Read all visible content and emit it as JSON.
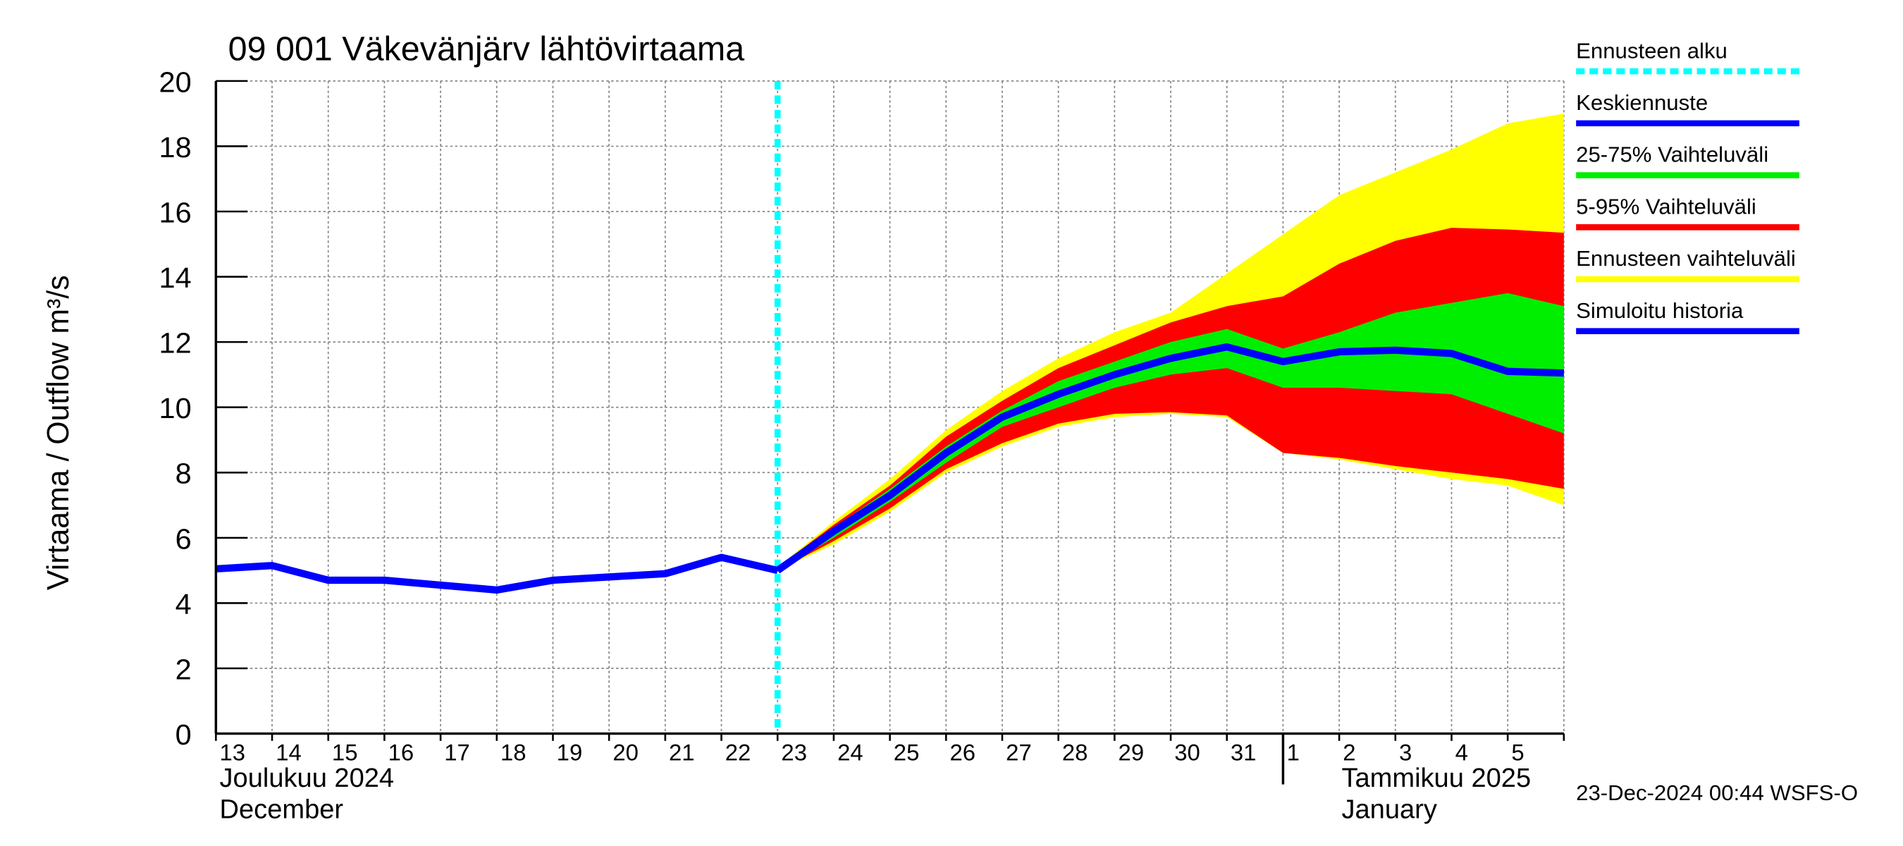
{
  "chart_data": {
    "type": "line",
    "title": "09 001 Väkevänjärv lähtövirtaama",
    "y_label": "Virtaama / Outflow    m³/s",
    "categories": [
      "13",
      "14",
      "15",
      "16",
      "17",
      "18",
      "19",
      "20",
      "21",
      "22",
      "23",
      "24",
      "25",
      "26",
      "27",
      "28",
      "29",
      "30",
      "31",
      "1",
      "2",
      "3",
      "4",
      "5",
      null
    ],
    "month_labels": [
      {
        "index": 0,
        "lines": [
          "Joulukuu  2024",
          "December"
        ]
      },
      {
        "index": 19,
        "lines": [
          "Tammikuu  2025",
          "January"
        ]
      }
    ],
    "footer": "23-Dec-2024 00:44 WSFS-O",
    "forecast_start_label": "Ennusteen alku",
    "forecast_start_color": "#00ffff",
    "ylim": [
      0,
      20
    ],
    "yticks": [
      0,
      2,
      4,
      6,
      8,
      10,
      12,
      14,
      16,
      18,
      20
    ],
    "grid": true,
    "series": [
      {
        "name": "Keskiennuste",
        "color": "#0000ff",
        "values": [
          null,
          null,
          null,
          null,
          null,
          null,
          null,
          null,
          null,
          null,
          5.0,
          6.2,
          7.3,
          8.6,
          9.7,
          10.4,
          11.0,
          11.5,
          11.85,
          11.4,
          11.7,
          11.75,
          11.65,
          11.1,
          11.05
        ]
      },
      {
        "name": "25-75% Vaihteluväli",
        "color": "#00ee00",
        "values": [
          null,
          null,
          null,
          null,
          null,
          null,
          null,
          null,
          null,
          null,
          5.05,
          6.3,
          7.5,
          8.8,
          9.9,
          10.8,
          11.4,
          12.0,
          12.4,
          11.8,
          12.3,
          12.9,
          13.2,
          13.5,
          13.1
        ],
        "lower": [
          null,
          null,
          null,
          null,
          null,
          null,
          null,
          null,
          null,
          null,
          5.0,
          6.0,
          7.1,
          8.3,
          9.4,
          10.0,
          10.6,
          11.0,
          11.2,
          10.6,
          10.6,
          10.5,
          10.4,
          9.8,
          9.2
        ]
      },
      {
        "name": "5-95% Vaihteluväli",
        "color": "#ff0000",
        "values": [
          null,
          null,
          null,
          null,
          null,
          null,
          null,
          null,
          null,
          null,
          5.1,
          6.4,
          7.6,
          9.1,
          10.2,
          11.2,
          11.9,
          12.6,
          13.1,
          13.4,
          14.4,
          15.1,
          15.5,
          15.45,
          15.35
        ],
        "lower": [
          null,
          null,
          null,
          null,
          null,
          null,
          null,
          null,
          null,
          null,
          5.0,
          5.9,
          6.9,
          8.1,
          8.9,
          9.5,
          9.8,
          9.85,
          9.75,
          8.6,
          8.45,
          8.2,
          8.0,
          7.8,
          7.5
        ]
      },
      {
        "name": "Ennusteen vaihteluväli",
        "color": "#ffff00",
        "values": [
          null,
          null,
          null,
          null,
          null,
          null,
          null,
          null,
          null,
          null,
          5.1,
          6.5,
          7.8,
          9.3,
          10.5,
          11.5,
          12.3,
          12.9,
          14.1,
          15.3,
          16.5,
          17.2,
          17.9,
          18.7,
          19.0
        ],
        "lower": [
          null,
          null,
          null,
          null,
          null,
          null,
          null,
          null,
          null,
          null,
          5.0,
          5.8,
          6.8,
          8.0,
          8.8,
          9.4,
          9.7,
          9.8,
          9.7,
          8.6,
          8.4,
          8.1,
          7.8,
          7.6,
          7.0
        ]
      },
      {
        "name": "Simuloitu historia",
        "color": "#0000ff",
        "values": [
          5.05,
          5.15,
          4.7,
          4.7,
          4.55,
          4.4,
          4.7,
          4.8,
          4.9,
          5.4,
          5.0,
          null,
          null,
          null,
          null,
          null,
          null,
          null,
          null,
          null,
          null,
          null,
          null,
          null,
          null
        ]
      }
    ]
  }
}
